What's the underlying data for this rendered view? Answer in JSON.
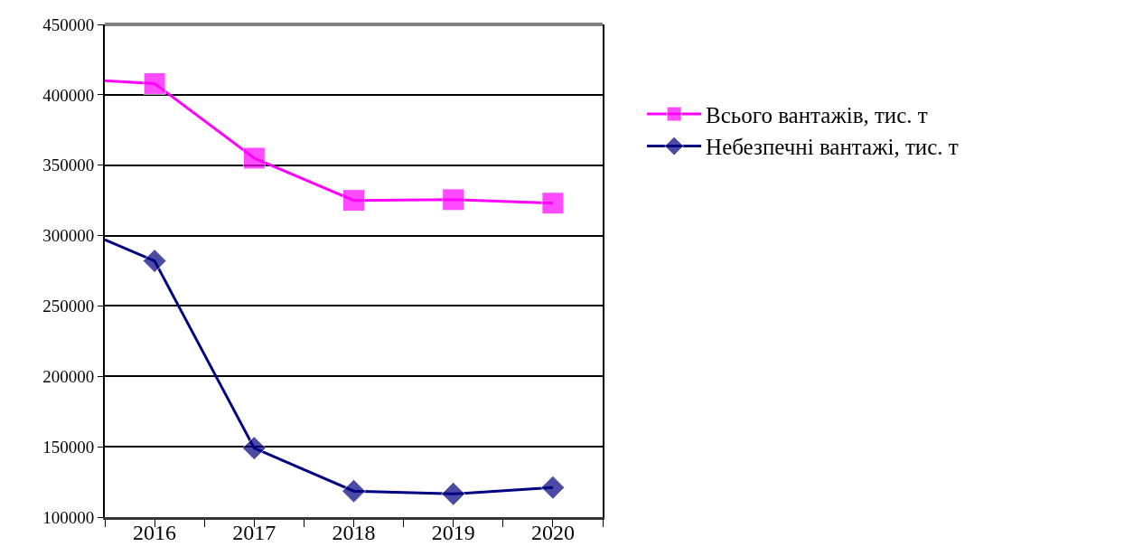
{
  "chart_data": {
    "type": "line",
    "series": [
      {
        "name": "Всього вантажів, тис. т",
        "color": "#ff00ff",
        "marker": "square",
        "x": [
          2015.5,
          2016,
          2017,
          2018,
          2019,
          2020
        ],
        "values": [
          410000,
          408000,
          355000,
          325000,
          325500,
          323000
        ]
      },
      {
        "name": "Небезпечні вантажі, тис. т",
        "color": "#000080",
        "marker": "diamond",
        "x": [
          2015.5,
          2016,
          2017,
          2018,
          2019,
          2020
        ],
        "values": [
          297000,
          282000,
          149000,
          118500,
          116500,
          121000
        ]
      }
    ],
    "xlim": [
      2015.5,
      2020.5
    ],
    "xticks": [
      {
        "value": 2015.5,
        "label": null
      },
      {
        "value": 2016,
        "label": "2016"
      },
      {
        "value": 2016.5,
        "label": null
      },
      {
        "value": 2017,
        "label": "2017"
      },
      {
        "value": 2017.5,
        "label": null
      },
      {
        "value": 2018,
        "label": "2018"
      },
      {
        "value": 2018.5,
        "label": null
      },
      {
        "value": 2019,
        "label": "2019"
      },
      {
        "value": 2019.5,
        "label": null
      },
      {
        "value": 2020,
        "label": "2020"
      },
      {
        "value": 2020.5,
        "label": null
      }
    ],
    "ylim": [
      100000,
      450000
    ],
    "yticks": [
      100000,
      150000,
      200000,
      250000,
      300000,
      350000,
      400000,
      450000
    ],
    "grid": "y",
    "legend": "right",
    "line_style": "solid"
  }
}
